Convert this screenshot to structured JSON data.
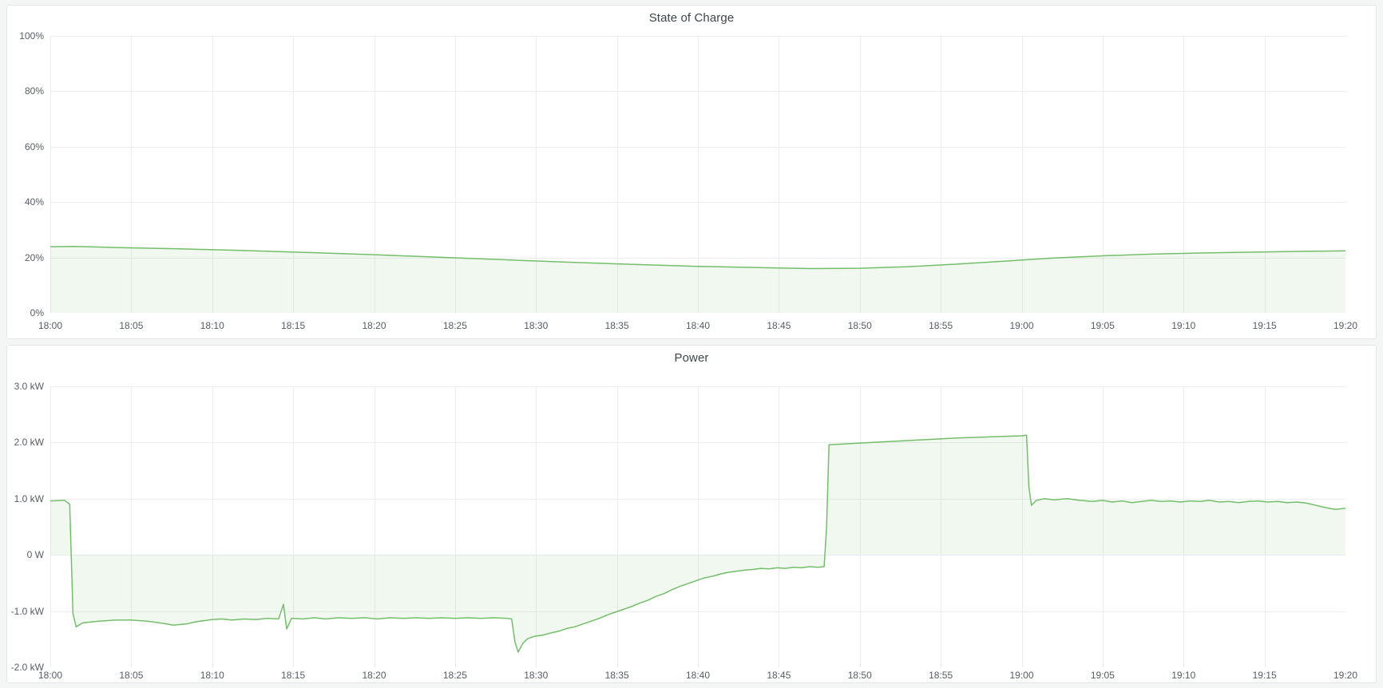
{
  "page": {
    "background": "#f4f5f5",
    "panel_background": "#ffffff",
    "panel_border_color": "#e3e5e8",
    "grid_color": "#ebedef",
    "title_color": "#3d454e",
    "tick_label_color": "#575c63",
    "accent_green": "#73bf69"
  },
  "chart_data": [
    {
      "type": "area",
      "title": "State of Charge",
      "xlabel": "",
      "ylabel": "",
      "xlim": [
        0,
        80
      ],
      "ylim": [
        0,
        100
      ],
      "grid": true,
      "legend": "none",
      "baseline": 0,
      "line_color": "#73bf69",
      "fill_color": "rgba(115,191,105,0.10)",
      "x_ticks": [
        0,
        5,
        10,
        15,
        20,
        25,
        30,
        35,
        40,
        45,
        50,
        55,
        60,
        65,
        70,
        75,
        80
      ],
      "x_tick_labels": [
        "18:00",
        "18:05",
        "18:10",
        "18:15",
        "18:20",
        "18:25",
        "18:30",
        "18:35",
        "18:40",
        "18:45",
        "18:50",
        "18:55",
        "19:00",
        "19:05",
        "19:10",
        "19:15",
        "19:20"
      ],
      "y_ticks": [
        0,
        20,
        40,
        60,
        80,
        100
      ],
      "y_tick_labels": [
        "0%",
        "20%",
        "40%",
        "60%",
        "80%",
        "100%"
      ],
      "series_name": "State of Charge (%)",
      "points": [
        [
          0,
          23.9
        ],
        [
          1.5,
          24.0
        ],
        [
          4,
          23.6
        ],
        [
          8,
          23.1
        ],
        [
          12,
          22.5
        ],
        [
          16,
          21.8
        ],
        [
          20,
          21.0
        ],
        [
          24,
          20.1
        ],
        [
          28,
          19.2
        ],
        [
          32,
          18.3
        ],
        [
          36,
          17.5
        ],
        [
          40,
          16.8
        ],
        [
          44,
          16.3
        ],
        [
          47,
          16.0
        ],
        [
          50,
          16.1
        ],
        [
          53,
          16.7
        ],
        [
          56,
          17.6
        ],
        [
          59,
          18.7
        ],
        [
          62,
          19.8
        ],
        [
          65,
          20.6
        ],
        [
          68,
          21.2
        ],
        [
          71,
          21.6
        ],
        [
          74,
          21.9
        ],
        [
          77,
          22.2
        ],
        [
          80,
          22.4
        ]
      ]
    },
    {
      "type": "area",
      "title": "Power",
      "xlabel": "",
      "ylabel": "",
      "xlim": [
        0,
        80
      ],
      "ylim": [
        -2,
        3
      ],
      "grid": true,
      "legend": "none",
      "baseline": 0,
      "line_color": "#73bf69",
      "fill_color": "rgba(115,191,105,0.10)",
      "x_ticks": [
        0,
        5,
        10,
        15,
        20,
        25,
        30,
        35,
        40,
        45,
        50,
        55,
        60,
        65,
        70,
        75,
        80
      ],
      "x_tick_labels": [
        "18:00",
        "18:05",
        "18:10",
        "18:15",
        "18:20",
        "18:25",
        "18:30",
        "18:35",
        "18:40",
        "18:45",
        "18:50",
        "18:55",
        "19:00",
        "19:05",
        "19:10",
        "19:15",
        "19:20"
      ],
      "y_ticks": [
        -2,
        -1,
        0,
        1,
        2,
        3
      ],
      "y_tick_labels": [
        "-2.0 kW",
        "-1.0 kW",
        "0 W",
        "1.0 kW",
        "2.0 kW",
        "3.0 kW"
      ],
      "series_name": "Power (kW)",
      "points": [
        [
          0,
          0.96
        ],
        [
          0.9,
          0.97
        ],
        [
          1.2,
          0.9
        ],
        [
          1.4,
          -1.05
        ],
        [
          1.6,
          -1.28
        ],
        [
          2,
          -1.21
        ],
        [
          3,
          -1.18
        ],
        [
          4,
          -1.16
        ],
        [
          5,
          -1.16
        ],
        [
          6,
          -1.18
        ],
        [
          7,
          -1.22
        ],
        [
          7.6,
          -1.25
        ],
        [
          8.4,
          -1.23
        ],
        [
          9,
          -1.19
        ],
        [
          10,
          -1.15
        ],
        [
          10.6,
          -1.14
        ],
        [
          11.2,
          -1.16
        ],
        [
          12,
          -1.14
        ],
        [
          12.7,
          -1.15
        ],
        [
          13.4,
          -1.13
        ],
        [
          14.1,
          -1.14
        ],
        [
          14.4,
          -0.88
        ],
        [
          14.6,
          -1.32
        ],
        [
          14.9,
          -1.13
        ],
        [
          15.6,
          -1.14
        ],
        [
          16.3,
          -1.12
        ],
        [
          17,
          -1.14
        ],
        [
          17.8,
          -1.12
        ],
        [
          18.6,
          -1.13
        ],
        [
          19.4,
          -1.12
        ],
        [
          20.2,
          -1.14
        ],
        [
          21,
          -1.12
        ],
        [
          21.8,
          -1.13
        ],
        [
          22.6,
          -1.12
        ],
        [
          23.4,
          -1.13
        ],
        [
          24.2,
          -1.12
        ],
        [
          25,
          -1.13
        ],
        [
          25.8,
          -1.12
        ],
        [
          26.6,
          -1.13
        ],
        [
          27.4,
          -1.12
        ],
        [
          28.2,
          -1.13
        ],
        [
          28.5,
          -1.14
        ],
        [
          28.7,
          -1.55
        ],
        [
          28.9,
          -1.73
        ],
        [
          29.2,
          -1.57
        ],
        [
          29.5,
          -1.49
        ],
        [
          29.9,
          -1.45
        ],
        [
          30.4,
          -1.43
        ],
        [
          30.9,
          -1.39
        ],
        [
          31.4,
          -1.36
        ],
        [
          31.9,
          -1.31
        ],
        [
          32.4,
          -1.28
        ],
        [
          32.9,
          -1.23
        ],
        [
          33.4,
          -1.18
        ],
        [
          33.9,
          -1.13
        ],
        [
          34.4,
          -1.07
        ],
        [
          34.9,
          -1.02
        ],
        [
          35.4,
          -0.97
        ],
        [
          35.9,
          -0.92
        ],
        [
          36.4,
          -0.86
        ],
        [
          36.9,
          -0.81
        ],
        [
          37.4,
          -0.74
        ],
        [
          37.9,
          -0.69
        ],
        [
          38.4,
          -0.62
        ],
        [
          38.9,
          -0.56
        ],
        [
          39.4,
          -0.51
        ],
        [
          39.9,
          -0.46
        ],
        [
          40.4,
          -0.41
        ],
        [
          40.9,
          -0.38
        ],
        [
          41.4,
          -0.34
        ],
        [
          41.9,
          -0.31
        ],
        [
          42.4,
          -0.29
        ],
        [
          42.9,
          -0.27
        ],
        [
          43.4,
          -0.26
        ],
        [
          43.9,
          -0.24
        ],
        [
          44.4,
          -0.25
        ],
        [
          44.9,
          -0.23
        ],
        [
          45.4,
          -0.24
        ],
        [
          45.9,
          -0.22
        ],
        [
          46.4,
          -0.23
        ],
        [
          46.9,
          -0.21
        ],
        [
          47.4,
          -0.22
        ],
        [
          47.8,
          -0.21
        ],
        [
          47.95,
          0.5
        ],
        [
          48.1,
          1.96
        ],
        [
          50,
          1.99
        ],
        [
          52,
          2.02
        ],
        [
          54,
          2.05
        ],
        [
          56,
          2.08
        ],
        [
          58,
          2.1
        ],
        [
          60,
          2.12
        ],
        [
          60.3,
          2.13
        ],
        [
          60.45,
          1.2
        ],
        [
          60.6,
          0.88
        ],
        [
          60.9,
          0.97
        ],
        [
          61.4,
          1.0
        ],
        [
          62,
          0.98
        ],
        [
          62.8,
          1.0
        ],
        [
          63.6,
          0.97
        ],
        [
          64.4,
          0.95
        ],
        [
          65,
          0.97
        ],
        [
          65.6,
          0.94
        ],
        [
          66.2,
          0.96
        ],
        [
          66.8,
          0.93
        ],
        [
          67.4,
          0.95
        ],
        [
          68,
          0.97
        ],
        [
          68.6,
          0.95
        ],
        [
          69.2,
          0.96
        ],
        [
          69.8,
          0.94
        ],
        [
          70.4,
          0.96
        ],
        [
          71,
          0.95
        ],
        [
          71.6,
          0.97
        ],
        [
          72.2,
          0.94
        ],
        [
          72.8,
          0.95
        ],
        [
          73.4,
          0.93
        ],
        [
          74,
          0.95
        ],
        [
          74.6,
          0.96
        ],
        [
          75.2,
          0.94
        ],
        [
          75.8,
          0.95
        ],
        [
          76.4,
          0.93
        ],
        [
          77,
          0.94
        ],
        [
          77.6,
          0.92
        ],
        [
          78.2,
          0.88
        ],
        [
          78.8,
          0.84
        ],
        [
          79.4,
          0.81
        ],
        [
          80,
          0.83
        ]
      ]
    }
  ]
}
